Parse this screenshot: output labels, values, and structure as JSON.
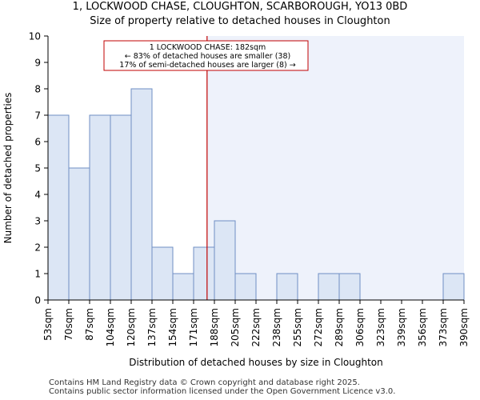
{
  "title_line1": "1, LOCKWOOD CHASE, CLOUGHTON, SCARBOROUGH, YO13 0BD",
  "title_line2": "Size of property relative to detached houses in Cloughton",
  "footer_line1": "Contains HM Land Registry data © Crown copyright and database right 2025.",
  "footer_line2": "Contains public sector information licensed under the Open Government Licence v3.0.",
  "colors": {
    "bar_fill": "#dce6f5",
    "bar_stroke": "#6f8fc4",
    "highlight_bg": "#eef2fb",
    "marker_line": "#c00000",
    "annotation_border": "#c00000"
  },
  "chart_data": {
    "type": "bar",
    "title": "Size of property relative to detached houses in Cloughton",
    "xlabel": "Distribution of detached houses by size in Cloughton",
    "ylabel": "Number of detached properties",
    "ylim": [
      0,
      10
    ],
    "yticks": [
      0,
      1,
      2,
      3,
      4,
      5,
      6,
      7,
      8,
      9,
      10
    ],
    "bin_edges_labels": [
      "53sqm",
      "70sqm",
      "87sqm",
      "104sqm",
      "120sqm",
      "137sqm",
      "154sqm",
      "171sqm",
      "188sqm",
      "205sqm",
      "222sqm",
      "238sqm",
      "255sqm",
      "272sqm",
      "289sqm",
      "306sqm",
      "323sqm",
      "339sqm",
      "356sqm",
      "373sqm",
      "390sqm"
    ],
    "bin_edges_sqm": [
      53,
      70,
      87,
      104,
      120,
      137,
      154,
      171,
      188,
      205,
      222,
      238,
      255,
      272,
      289,
      306,
      323,
      339,
      356,
      373,
      390
    ],
    "values": [
      7,
      5,
      7,
      7,
      8,
      2,
      1,
      2,
      3,
      1,
      0,
      1,
      0,
      1,
      1,
      0,
      0,
      0,
      0,
      1
    ],
    "marker_value_sqm": 182,
    "annotation": {
      "line1": "1 LOCKWOOD CHASE: 182sqm",
      "line2": "← 83% of detached houses are smaller (38)",
      "line3": "17% of semi-detached houses are larger (8) →"
    }
  }
}
